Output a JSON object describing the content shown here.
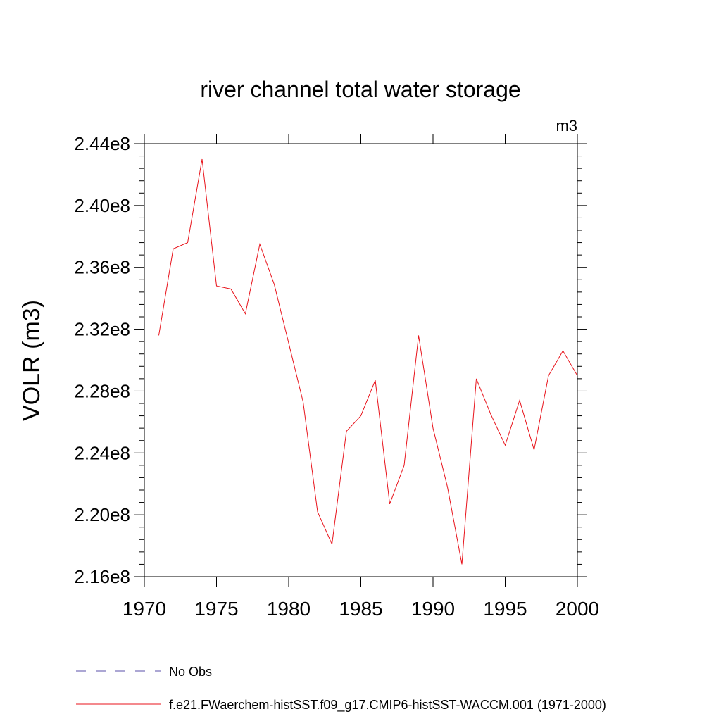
{
  "chart_data": {
    "type": "line",
    "title": "river channel total water storage",
    "units_label": "m3",
    "ylabel": "VOLR  (m3)",
    "xlabel": "",
    "xlim": [
      1970,
      2000
    ],
    "ylim": [
      216000000.0,
      244000000.0
    ],
    "x_ticks": [
      1970,
      1975,
      1980,
      1985,
      1990,
      1995,
      2000
    ],
    "x_tick_labels": [
      "1970",
      "1975",
      "1980",
      "1985",
      "1990",
      "1995",
      "2000"
    ],
    "y_ticks": [
      216000000.0,
      220000000.0,
      224000000.0,
      228000000.0,
      232000000.0,
      236000000.0,
      240000000.0,
      244000000.0
    ],
    "y_tick_labels": [
      "2.16e8",
      "2.20e8",
      "2.24e8",
      "2.28e8",
      "2.32e8",
      "2.36e8",
      "2.40e8",
      "2.44e8"
    ],
    "grid": false,
    "legend_position": "bottom",
    "series": [
      {
        "name": "No Obs",
        "color": "#5a4fa8",
        "dash": "dashed",
        "x": [],
        "y": []
      },
      {
        "name": "f.e21.FWaerchem-histSST.f09_g17.CMIP6-histSST-WACCM.001 (1971-2000)",
        "color": "#e8131b",
        "dash": "solid",
        "x": [
          1971,
          1972,
          1973,
          1974,
          1975,
          1976,
          1977,
          1978,
          1979,
          1980,
          1981,
          1982,
          1983,
          1984,
          1985,
          1986,
          1987,
          1988,
          1989,
          1990,
          1991,
          1992,
          1993,
          1994,
          1995,
          1996,
          1997,
          1998,
          1999,
          2000
        ],
        "y": [
          231600000.0,
          237200000.0,
          237600000.0,
          243000000.0,
          234800000.0,
          234600000.0,
          233000000.0,
          237500000.0,
          234900000.0,
          231100000.0,
          227300000.0,
          220200000.0,
          218100000.0,
          225400000.0,
          226400000.0,
          228700000.0,
          220700000.0,
          223200000.0,
          231600000.0,
          225600000.0,
          221800000.0,
          216800000.0,
          228800000.0,
          226500000.0,
          224500000.0,
          227400000.0,
          224200000.0,
          229000000.0,
          230600000.0,
          229000000.0
        ]
      }
    ]
  }
}
